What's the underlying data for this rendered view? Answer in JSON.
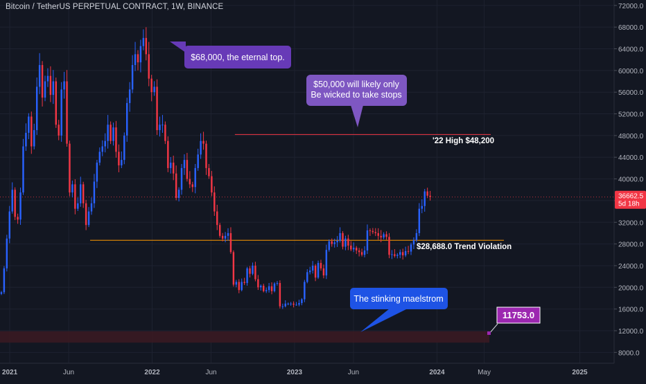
{
  "header": {
    "title": "Bitcoin / TetherUS PERPETUAL CONTRACT, 1W, BINANCE"
  },
  "colors": {
    "background": "#131722",
    "grid": "#1e2230",
    "axis_text": "#b2b5be",
    "up_candle": "#2962ff",
    "down_candle": "#f23645",
    "resistance_line": "#f23645",
    "support_line": "#ff9800",
    "maelstrom_zone": "#3a1a22",
    "callout_purple": "#673ab7",
    "callout_lavender": "#7e57c2",
    "callout_blue": "#1e53e5",
    "price_badge": "#f23645",
    "level_badge": "#9c27b0"
  },
  "price_tag": {
    "value": "36662.5",
    "countdown": "5d 18h"
  },
  "level_badge": {
    "value": "11753.0"
  },
  "chart_data": {
    "type": "candlestick",
    "timeframe": "1W",
    "y_axis": {
      "ticks": [
        8000,
        12000,
        16000,
        20000,
        24000,
        28000,
        32000,
        36000,
        40000,
        44000,
        48000,
        52000,
        56000,
        60000,
        64000,
        68000,
        72000
      ],
      "tick_labels": [
        "8000.0",
        "12000.0",
        "16000.0",
        "20000.0",
        "24000.0",
        "28000.0",
        "32000.0",
        "36000.0",
        "40000.0",
        "44000.0",
        "48000.0",
        "52000.0",
        "56000.0",
        "60000.0",
        "64000.0",
        "68000.0",
        "72000.0"
      ],
      "range": [
        6000,
        73000
      ]
    },
    "x_axis": {
      "ticks": [
        "2021-01-01",
        "2021-06-01",
        "2022-01-01",
        "2022-06-01",
        "2023-01-01",
        "2023-06-01",
        "2024-01-01",
        "2024-05-01",
        "2025-01-01"
      ],
      "tick_labels": [
        "2021",
        "Jun",
        "2022",
        "Jun",
        "2023",
        "Jun",
        "2024",
        "May",
        "2025"
      ],
      "bold_ticks": [
        "2021",
        "2022",
        "2023",
        "2024",
        "2025"
      ],
      "range": [
        "2020-12-07",
        "2025-03-30"
      ]
    },
    "series_note": "approximate weekly closes",
    "start_open": 18800,
    "start_week": "2020-12-07",
    "closes": [
      19100,
      23500,
      29000,
      34000,
      38000,
      33000,
      32500,
      37500,
      46000,
      48500,
      51500,
      46000,
      49000,
      57000,
      61000,
      55000,
      58000,
      59000,
      55500,
      58000,
      50000,
      48000,
      56500,
      58000,
      46500,
      37500,
      39000,
      34500,
      35500,
      39000,
      35500,
      31500,
      34000,
      35500,
      39500,
      43000,
      45000,
      46000,
      47000,
      50000,
      47000,
      49500,
      45000,
      42500,
      43500,
      48000,
      54000,
      56500,
      61000,
      63000,
      61500,
      64500,
      66000,
      63000,
      58500,
      56000,
      57000,
      49000,
      50000,
      50000,
      47000,
      42000,
      43000,
      41000,
      36500,
      38000,
      42000,
      43500,
      40000,
      39000,
      38500,
      42000,
      44500,
      47000,
      46500,
      42000,
      40500,
      37500,
      34000,
      31500,
      29500,
      29000,
      29500,
      30000,
      26500,
      20500,
      21000,
      19500,
      21000,
      20800,
      23500,
      22500,
      24000,
      21500,
      20000,
      20300,
      19300,
      19500,
      20200,
      19300,
      20700,
      20800,
      16500,
      16500,
      17000,
      17000,
      17000,
      16800,
      16800,
      17100,
      17800,
      21000,
      22800,
      23100,
      24000,
      21800,
      24500,
      23500,
      22200,
      26900,
      28500,
      28000,
      28300,
      28600,
      30000,
      27500,
      29000,
      27700,
      27000,
      27300,
      26800,
      26500,
      26000,
      26800,
      30500,
      30400,
      30200,
      30000,
      29500,
      29200,
      29800,
      29300,
      26000,
      26100,
      25800,
      26000,
      26500,
      25900,
      26700,
      26600,
      27900,
      28700,
      30000,
      34500,
      35000,
      37700,
      36900,
      36662.5
    ],
    "annotations": {
      "callout_top": "$68,000, the eternal top.",
      "callout_stops_line1": "$50,000 will likely only",
      "callout_stops_line2": "Be wicked to take stops",
      "callout_maelstrom": "The stinking maelstrom",
      "resistance_label": "'22 High $48,200",
      "support_label": "$28,688.0 Trend Violation"
    },
    "levels": {
      "resistance": 48200,
      "support": 28688,
      "maelstrom_low": 9800,
      "maelstrom_high": 11900
    }
  }
}
